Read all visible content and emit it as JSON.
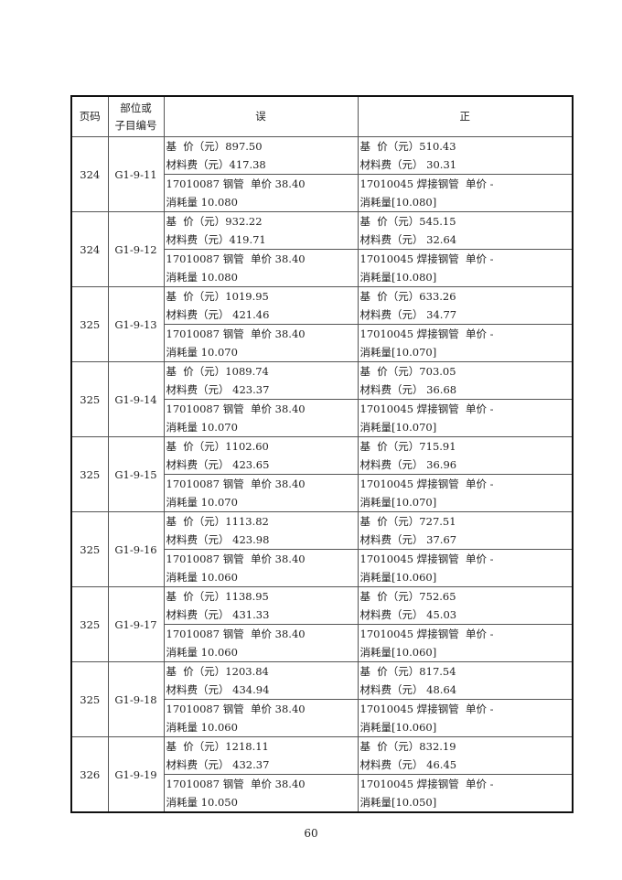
{
  "header": {
    "page": "页码",
    "code_line1": "部位或",
    "code_line2": "子目编号",
    "wrong": "误",
    "right": "正"
  },
  "rows": [
    {
      "page": "324",
      "code": "G1-9-11",
      "wrong_price": [
        "基  价（元）897.50",
        "材料费（元）417.38"
      ],
      "wrong_material": [
        "17010087 钢管  单价 38.40",
        "消耗量 10.080"
      ],
      "right_price": [
        "基  价（元）510.43",
        "材料费（元） 30.31"
      ],
      "right_material": [
        "17010045 焊接钢管  单价 -",
        "消耗量[10.080]"
      ]
    },
    {
      "page": "324",
      "code": "G1-9-12",
      "wrong_price": [
        "基  价（元）932.22",
        "材料费（元）419.71"
      ],
      "wrong_material": [
        "17010087 钢管  单价 38.40",
        "消耗量 10.080"
      ],
      "right_price": [
        "基  价（元）545.15",
        "材料费（元） 32.64"
      ],
      "right_material": [
        "17010045 焊接钢管  单价 -",
        "消耗量[10.080]"
      ]
    },
    {
      "page": "325",
      "code": "G1-9-13",
      "wrong_price": [
        "基  价（元）1019.95",
        "材料费（元） 421.46"
      ],
      "wrong_material": [
        "17010087 钢管  单价 38.40",
        "消耗量 10.070"
      ],
      "right_price": [
        "基  价（元）633.26",
        "材料费（元） 34.77"
      ],
      "right_material": [
        "17010045 焊接钢管  单价 -",
        "消耗量[10.070]"
      ]
    },
    {
      "page": "325",
      "code": "G1-9-14",
      "wrong_price": [
        "基  价（元）1089.74",
        "材料费（元） 423.37"
      ],
      "wrong_material": [
        "17010087 钢管  单价 38.40",
        "消耗量 10.070"
      ],
      "right_price": [
        "基  价（元）703.05",
        "材料费（元） 36.68"
      ],
      "right_material": [
        "17010045 焊接钢管  单价 -",
        "消耗量[10.070]"
      ]
    },
    {
      "page": "325",
      "code": "G1-9-15",
      "wrong_price": [
        "基  价（元）1102.60",
        "材料费（元） 423.65"
      ],
      "wrong_material": [
        "17010087 钢管  单价 38.40",
        "消耗量 10.070"
      ],
      "right_price": [
        "基  价（元）715.91",
        "材料费（元） 36.96"
      ],
      "right_material": [
        "17010045 焊接钢管  单价 -",
        "消耗量[10.070]"
      ]
    },
    {
      "page": "325",
      "code": "G1-9-16",
      "wrong_price": [
        "基  价（元）1113.82",
        "材料费（元） 423.98"
      ],
      "wrong_material": [
        "17010087 钢管  单价 38.40",
        "消耗量 10.060"
      ],
      "right_price": [
        "基  价（元）727.51",
        "材料费（元） 37.67"
      ],
      "right_material": [
        "17010045 焊接钢管  单价 -",
        "消耗量[10.060]"
      ]
    },
    {
      "page": "325",
      "code": "G1-9-17",
      "wrong_price": [
        "基  价（元）1138.95",
        "材料费（元） 431.33"
      ],
      "wrong_material": [
        "17010087 钢管  单价 38.40",
        "消耗量 10.060"
      ],
      "right_price": [
        "基  价（元）752.65",
        "材料费（元） 45.03"
      ],
      "right_material": [
        "17010045 焊接钢管  单价 -",
        "消耗量[10.060]"
      ]
    },
    {
      "page": "325",
      "code": "G1-9-18",
      "wrong_price": [
        "基  价（元）1203.84",
        "材料费（元） 434.94"
      ],
      "wrong_material": [
        "17010087 钢管  单价 38.40",
        "消耗量 10.060"
      ],
      "right_price": [
        "基  价（元）817.54",
        "材料费（元） 48.64"
      ],
      "right_material": [
        "17010045 焊接钢管  单价 -",
        "消耗量[10.060]"
      ]
    },
    {
      "page": "326",
      "code": "G1-9-19",
      "wrong_price": [
        "基  价（元）1218.11",
        "材料费（元） 432.37"
      ],
      "wrong_material": [
        "17010087 钢管  单价 38.40",
        "消耗量 10.050"
      ],
      "right_price": [
        "基  价（元）832.19",
        "材料费（元） 46.45"
      ],
      "right_material": [
        "17010045 焊接钢管  单价 -",
        "消耗量[10.050]"
      ]
    }
  ],
  "page_number": "60"
}
